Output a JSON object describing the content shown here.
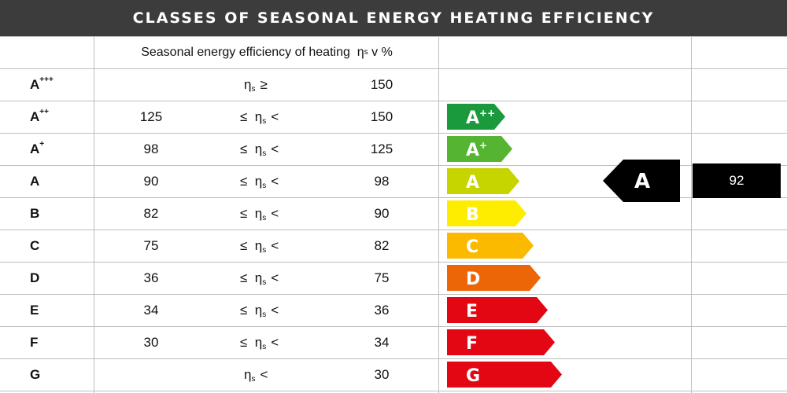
{
  "title": "CLASSES OF SEASONAL ENERGY HEATING EFFICIENCY",
  "header": {
    "text": "Seasonal energy efficiency of heating",
    "symbol": "η",
    "symbol_sub": "s",
    "unit": "v %"
  },
  "eta": "η",
  "eta_sub": "s",
  "rows": [
    {
      "cls": "A",
      "sup": "+++",
      "low": "",
      "op": "≥",
      "high": "150",
      "bar": null
    },
    {
      "cls": "A",
      "sup": "++",
      "low": "125",
      "op": "<",
      "high": "150",
      "bar": {
        "label": "A",
        "sup": "++",
        "color": "#1a9a3c"
      }
    },
    {
      "cls": "A",
      "sup": "+",
      "low": "98",
      "op": "<",
      "high": "125",
      "bar": {
        "label": "A",
        "sup": "+",
        "color": "#55b432"
      }
    },
    {
      "cls": "A",
      "sup": "",
      "low": "90",
      "op": "<",
      "high": "98",
      "bar": {
        "label": "A",
        "sup": "",
        "color": "#c6d400"
      }
    },
    {
      "cls": "B",
      "sup": "",
      "low": "82",
      "op": "<",
      "high": "90",
      "bar": {
        "label": "B",
        "sup": "",
        "color": "#ffed00"
      }
    },
    {
      "cls": "C",
      "sup": "",
      "low": "75",
      "op": "<",
      "high": "82",
      "bar": {
        "label": "C",
        "sup": "",
        "color": "#fbb900"
      }
    },
    {
      "cls": "D",
      "sup": "",
      "low": "36",
      "op": "<",
      "high": "75",
      "bar": {
        "label": "D",
        "sup": "",
        "color": "#ec6608"
      }
    },
    {
      "cls": "E",
      "sup": "",
      "low": "34",
      "op": "<",
      "high": "36",
      "bar": {
        "label": "E",
        "sup": "",
        "color": "#e30613"
      }
    },
    {
      "cls": "F",
      "sup": "",
      "low": "30",
      "op": "<",
      "high": "34",
      "bar": {
        "label": "F",
        "sup": "",
        "color": "#e30613"
      }
    },
    {
      "cls": "G",
      "sup": "",
      "low": "",
      "op": "<",
      "high": "30",
      "bar": {
        "label": "G",
        "sup": "",
        "color": "#e30613"
      }
    }
  ],
  "rating": {
    "label": "A",
    "value": "92"
  },
  "colors": {
    "title_bg": "#3c3c3c",
    "grid": "#bdbdbd",
    "indicator": "#000000"
  }
}
